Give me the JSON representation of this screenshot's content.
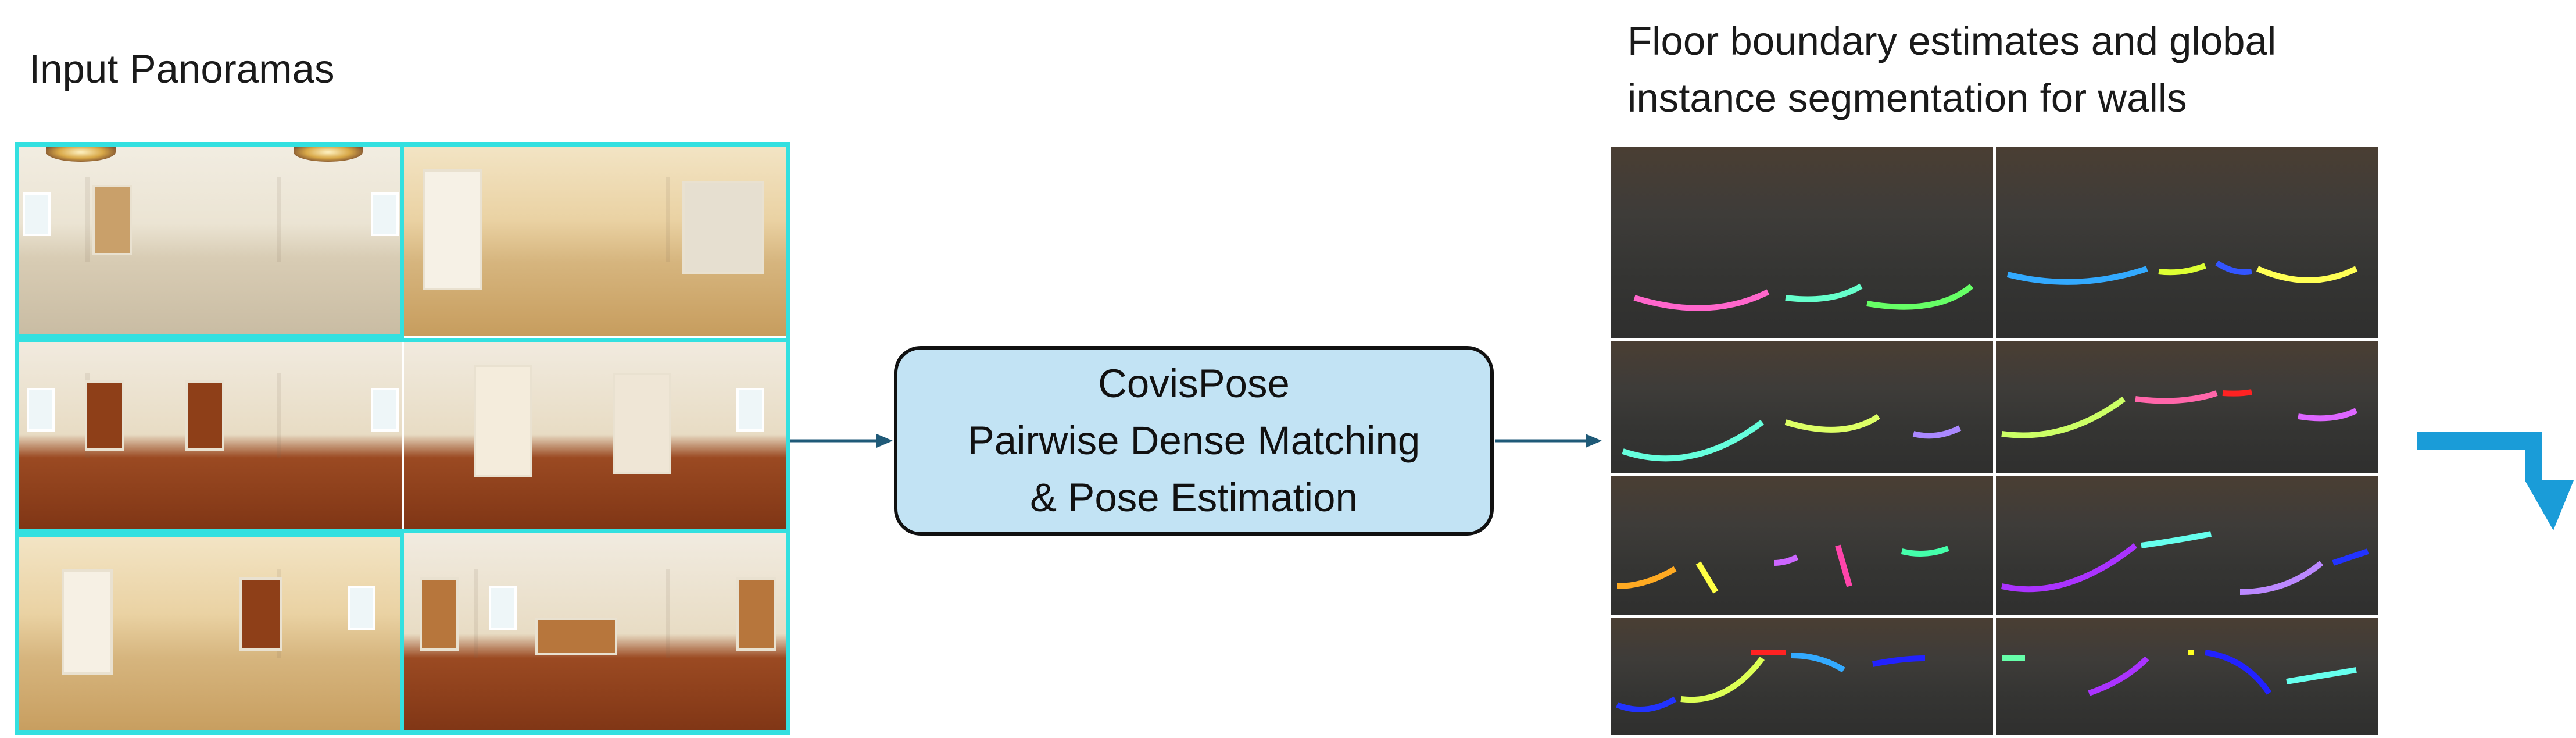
{
  "diagram": {
    "input_title": "Input Panoramas",
    "process_box": {
      "line1": "CovisPose",
      "line2": "Pairwise Dense Matching",
      "line3": "& Pose Estimation"
    },
    "output_title": {
      "line1": "Floor boundary estimates and global",
      "line2": "instance segmentation for walls"
    },
    "colors": {
      "highlight_border": "#33e0e0",
      "box_fill": "#c2e3f4",
      "arrow": "#1f5a78",
      "big_arrow": "#1a9cd8"
    }
  }
}
